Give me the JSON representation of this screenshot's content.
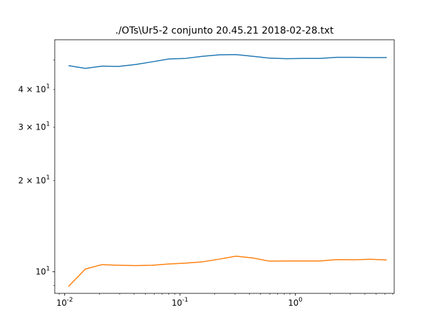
{
  "chart_data": {
    "type": "line",
    "title": "./OTs\\Ur5-2 conjunto   20.45.21 2018-02-28.txt",
    "xlabel": "",
    "ylabel": "",
    "xscale": "log",
    "yscale": "log",
    "xlim": [
      0.0082,
      7.2
    ],
    "ylim": [
      8.48,
      58.3
    ],
    "grid": false,
    "x_major_ticks": [
      {
        "value": 0.01,
        "label": "10^-2"
      },
      {
        "value": 0.1,
        "label": "10^-1"
      },
      {
        "value": 1,
        "label": "10^0"
      }
    ],
    "y_tick_labels": [
      {
        "value": 10,
        "label": "10^1"
      },
      {
        "value": 20,
        "label": "2 × 10^1"
      },
      {
        "value": 30,
        "label": "3 × 10^1"
      },
      {
        "value": 40,
        "label": "4 × 10^1"
      }
    ],
    "x": [
      0.0108,
      0.0151,
      0.021,
      0.0294,
      0.0411,
      0.0574,
      0.0802,
      0.112,
      0.157,
      0.219,
      0.306,
      0.427,
      0.597,
      0.834,
      1.17,
      1.63,
      2.28,
      3.18,
      4.44,
      6.21
    ],
    "series": [
      {
        "color": "#1f77b4",
        "values": [
          47.9,
          46.9,
          47.7,
          47.6,
          48.3,
          49.3,
          50.4,
          50.6,
          51.4,
          52.0,
          52.1,
          51.4,
          50.7,
          50.5,
          50.6,
          50.6,
          51.0,
          51.0,
          50.9,
          50.9
        ]
      },
      {
        "color": "#ff7f0e",
        "values": [
          8.94,
          10.2,
          10.55,
          10.5,
          10.47,
          10.5,
          10.6,
          10.67,
          10.78,
          11.0,
          11.25,
          11.1,
          10.83,
          10.85,
          10.85,
          10.85,
          10.96,
          10.95,
          10.99,
          10.93
        ]
      }
    ]
  }
}
